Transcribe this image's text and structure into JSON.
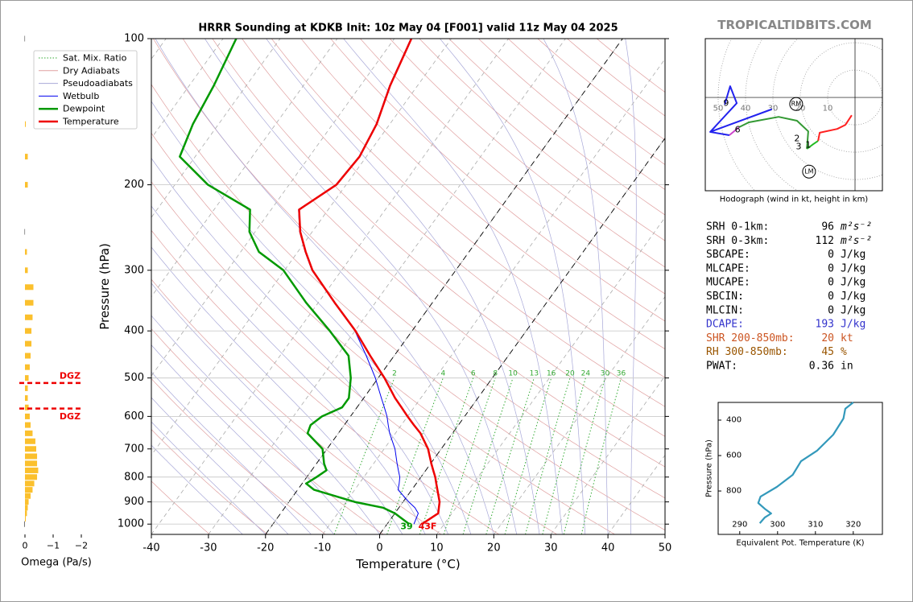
{
  "site": "TROPICALTIDBITS.COM",
  "indices": [
    {
      "label": "SRH 0-1km:",
      "value": 96,
      "unit": "m²s⁻²",
      "color": "#000000"
    },
    {
      "label": "SRH 0-3km:",
      "value": 112,
      "unit": "m²s⁻²",
      "color": "#000000"
    },
    {
      "label": "SBCAPE:",
      "value": 0,
      "unit": "J/kg",
      "color": "#000000"
    },
    {
      "label": "MLCAPE:",
      "value": 0,
      "unit": "J/kg",
      "color": "#000000"
    },
    {
      "label": "MUCAPE:",
      "value": 0,
      "unit": "J/kg",
      "color": "#000000"
    },
    {
      "label": "SBCIN:",
      "value": 0,
      "unit": "J/kg",
      "color": "#000000"
    },
    {
      "label": "MLCIN:",
      "value": 0,
      "unit": "J/kg",
      "color": "#000000"
    },
    {
      "label": "DCAPE:",
      "value": 193,
      "unit": "J/kg",
      "color": "#3333cc"
    },
    {
      "label": "SHR 200-850mb:",
      "value": 20,
      "unit": "kt",
      "color": "#cc5522"
    },
    {
      "label": "RH 300-850mb:",
      "value": 45,
      "unit": "%",
      "color": "#995500"
    },
    {
      "label": "PWAT:",
      "value": 0.36,
      "unit": "in",
      "color": "#000000"
    }
  ],
  "chart_data": [
    {
      "type": "skewt",
      "title": "HRRR Sounding at KDKB Init: 10z May 04 [F001] valid 11z May 04 2025",
      "xlabel": "Temperature (°C)",
      "ylabel": "Pressure (hPa)",
      "xlim": [
        -40,
        50
      ],
      "ylim": [
        1050,
        100
      ],
      "log_y": true,
      "xticks": [
        -40,
        -30,
        -20,
        -10,
        0,
        10,
        20,
        30,
        40,
        50
      ],
      "yticks": [
        100,
        200,
        300,
        400,
        500,
        600,
        700,
        800,
        900,
        1000
      ],
      "grid": true,
      "highlight_isotherms": [
        -20,
        0
      ],
      "mixing_ratios": [
        2,
        4,
        6,
        8,
        10,
        13,
        16,
        20,
        24,
        30,
        36
      ],
      "reference_lines": [
        {
          "name": "Sat. Mix. Ratio",
          "color": "#33aa33"
        },
        {
          "name": "Dry Adiabats",
          "color": "#e0a0a0"
        },
        {
          "name": "Pseudoadiabats",
          "color": "#a8a8d8"
        }
      ],
      "pressure": [
        1000,
        950,
        925,
        900,
        850,
        825,
        800,
        775,
        750,
        700,
        650,
        625,
        600,
        575,
        550,
        500,
        450,
        400,
        350,
        300,
        275,
        250,
        225,
        200,
        175,
        150,
        125,
        100
      ],
      "series": [
        {
          "name": "Wetbulb",
          "color": "#0000ee",
          "width": 1,
          "values": [
            4.7,
            4.1,
            2.8,
            1.0,
            -2.4,
            -3.0,
            -3.7,
            -4.8,
            -5.9,
            -8.1,
            -11,
            -12.3,
            -13.6,
            -15.2,
            -16.9,
            -20.5,
            -24.9,
            -30,
            -37.2,
            -45.2,
            -48.7,
            -52.2,
            -55.2,
            -51.8,
            -51.3,
            -52.4,
            -54.9,
            -57.1
          ]
        },
        {
          "name": "Dewpoint",
          "color": "#009900",
          "width": 2.5,
          "values": [
            3.9,
            0,
            -2.8,
            -8.5,
            -17.1,
            -19.3,
            -18.3,
            -17.4,
            -18.7,
            -20.8,
            -25.4,
            -25.9,
            -25,
            -22.6,
            -22.6,
            -24.8,
            -28,
            -34.4,
            -42.1,
            -50.2,
            -56.8,
            -61,
            -63.7,
            -74.2,
            -82.7,
            -84.5,
            -85.7,
            -87.7
          ]
        },
        {
          "name": "Temperature",
          "color": "#ee0000",
          "width": 2.5,
          "values": [
            6.1,
            7.6,
            7.0,
            6.4,
            4.5,
            3.5,
            2.5,
            1.3,
            0.1,
            -2.3,
            -5.6,
            -7.8,
            -10,
            -12.2,
            -14.5,
            -18.9,
            -24.2,
            -29.9,
            -37.1,
            -45.1,
            -48.6,
            -52.1,
            -55.1,
            -51.7,
            -51.2,
            -52.3,
            -54.8,
            -57
          ]
        }
      ],
      "surface_labels": [
        {
          "text": "39",
          "color": "#009900"
        },
        {
          "text": "43F",
          "color": "#ee0000"
        }
      ]
    },
    {
      "type": "hodograph",
      "caption": "Hodograph (wind in kt, height in km)",
      "xlim": [
        -54.7,
        10
      ],
      "ylim": [
        -34.1,
        21.5
      ],
      "rings": [
        10,
        20,
        30,
        40,
        50
      ],
      "series": [
        {
          "color": "#ff2020",
          "u": [
            -1.2,
            -3.5,
            -6.5,
            -12.9,
            -13.5
          ],
          "v": [
            -6.5,
            -10,
            -11.5,
            -12.9,
            -15.9
          ]
        },
        {
          "color": "#22bb22",
          "u": [
            -13.5,
            -15.3,
            -17.6
          ],
          "v": [
            -15.9,
            -17.1,
            -18.8
          ]
        },
        {
          "color": "#339933",
          "u": [
            -17.6,
            -17.1,
            -21.2,
            -27.9,
            -38.8,
            -42.4
          ],
          "v": [
            -18.8,
            -12.4,
            -8.5,
            -7.1,
            -9.1,
            -10.9
          ]
        },
        {
          "color": "#cc44cc",
          "u": [
            -42.4,
            -45.9
          ],
          "v": [
            -10.9,
            -13.8
          ]
        },
        {
          "color": "#2222ee",
          "u": [
            -45.9,
            -52.9,
            -30.6,
            -52.9,
            -43.2,
            -45.6,
            -47.6
          ],
          "v": [
            -13.8,
            -12.6,
            -4.4,
            -12.6,
            -2.1,
            4.1,
            -2.6
          ]
        }
      ],
      "height_labels": [
        {
          "text": "1",
          "u": -17.1,
          "v": -17.4
        },
        {
          "text": "2",
          "u": -21.2,
          "v": -15
        },
        {
          "text": "3",
          "u": -20.6,
          "v": -17.9
        },
        {
          "text": "6",
          "u": -42.9,
          "v": -11.8
        },
        {
          "text": "9",
          "u": -47.1,
          "v": -2.1
        }
      ],
      "storm_motions": [
        {
          "text": "RM",
          "u": -21.5,
          "v": -2.4
        },
        {
          "text": "LM",
          "u": -16.8,
          "v": -27.1
        }
      ]
    },
    {
      "type": "line",
      "xlabel": "Equivalent Pot. Temperature (K)",
      "ylabel": "Pressure (hPa)",
      "xlim": [
        284.3,
        327.7
      ],
      "ylim": [
        1045,
        300
      ],
      "xticks": [
        290,
        300,
        310,
        320
      ],
      "yticks": [
        400,
        600,
        800
      ],
      "color": "#3399bb",
      "x": [
        320,
        317.9,
        317.4,
        314.7,
        310.4,
        306.2,
        304,
        299.8,
        295.5,
        294.9,
        296.6,
        298.3,
        296.6,
        295.3
      ],
      "values": [
        300,
        336,
        391,
        482,
        573,
        632,
        709,
        777,
        832,
        868,
        900,
        927,
        950,
        982
      ]
    },
    {
      "type": "hbar",
      "xlabel": "Omega (Pa/s)",
      "xlim": [
        0.2,
        -2.2
      ],
      "ylim": [
        1050,
        100
      ],
      "xticks": [
        0,
        {
          "value": -1,
          "label": "−1"
        },
        {
          "value": -2,
          "label": "−2"
        }
      ],
      "color": "#fbc02d",
      "positive_color": "#777777",
      "pressure": [
        100,
        150,
        175,
        200,
        250,
        275,
        300,
        325,
        350,
        375,
        400,
        425,
        450,
        475,
        500,
        525,
        550,
        575,
        600,
        625,
        650,
        675,
        700,
        725,
        750,
        775,
        800,
        825,
        850,
        875,
        900,
        925,
        950,
        975,
        1000
      ],
      "values": [
        0.02,
        -0.03,
        -0.1,
        -0.1,
        0.02,
        -0.07,
        -0.1,
        -0.3,
        -0.3,
        -0.27,
        -0.23,
        -0.23,
        -0.2,
        -0.17,
        -0.13,
        -0.1,
        -0.1,
        -0.13,
        -0.17,
        -0.2,
        -0.27,
        -0.37,
        -0.4,
        -0.43,
        -0.43,
        -0.47,
        -0.43,
        -0.33,
        -0.27,
        -0.2,
        -0.13,
        -0.1,
        -0.07,
        -0.03,
        0.03
      ],
      "annotations": [
        {
          "text": "DGZ",
          "p": 512
        },
        {
          "text": "DGZ",
          "p": 578
        }
      ]
    }
  ]
}
